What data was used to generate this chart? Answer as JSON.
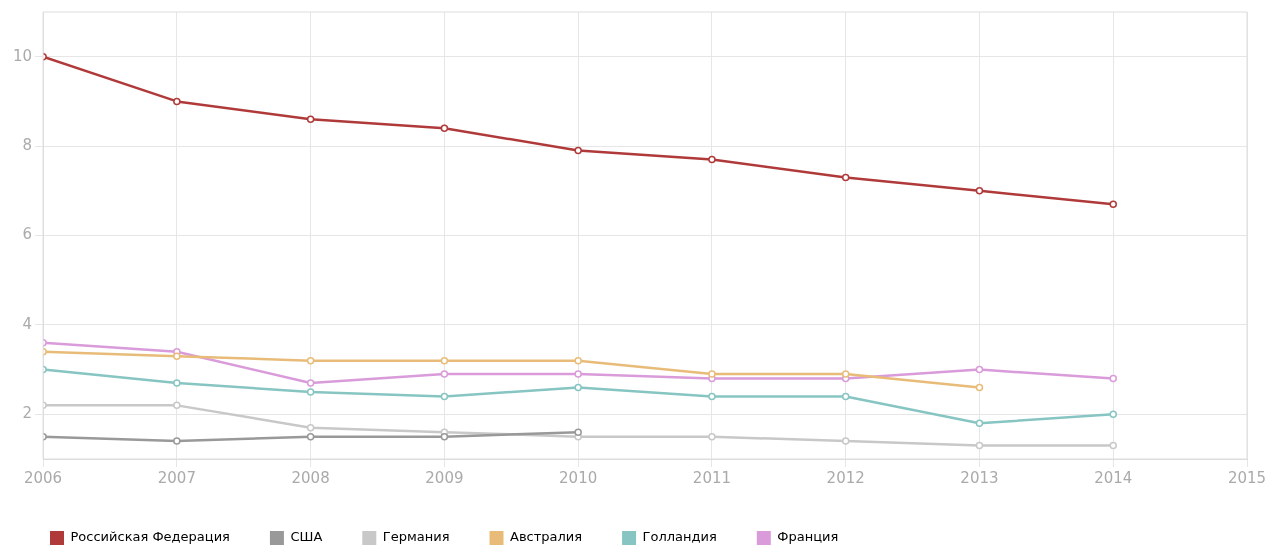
{
  "chart_data": {
    "type": "line",
    "x": [
      2006,
      2007,
      2008,
      2009,
      2010,
      2011,
      2012,
      2013,
      2014
    ],
    "xlim": [
      2006,
      2015
    ],
    "xticks": [
      2006,
      2007,
      2008,
      2009,
      2010,
      2011,
      2012,
      2013,
      2014,
      2015
    ],
    "ylim": [
      1,
      11
    ],
    "yticks": [
      2,
      4,
      6,
      8,
      10
    ],
    "grid": true,
    "legend": "bottom left",
    "marker": "circle",
    "line_style": "solid",
    "series": [
      {
        "name": "Российская Федерация",
        "color": "#b03a3a",
        "values": [
          10,
          9.0,
          8.6,
          8.4,
          7.9,
          7.7,
          7.3,
          7.0,
          6.7
        ]
      },
      {
        "name": "США",
        "color": "#999999",
        "values": [
          1.5,
          1.4,
          1.5,
          1.5,
          1.6,
          null,
          null,
          null,
          null
        ]
      },
      {
        "name": "Германия",
        "color": "#c8c8c8",
        "values": [
          2.2,
          2.2,
          1.7,
          1.6,
          1.5,
          1.5,
          1.4,
          1.3,
          1.3
        ]
      },
      {
        "name": "Австралия",
        "color": "#e8bc78",
        "values": [
          3.4,
          3.3,
          3.2,
          3.2,
          3.2,
          2.9,
          2.9,
          2.6,
          null
        ]
      },
      {
        "name": "Голландия",
        "color": "#86c5c2",
        "values": [
          3.0,
          2.7,
          2.5,
          2.4,
          2.6,
          2.4,
          2.4,
          1.8,
          2.0
        ]
      },
      {
        "name": "Франция",
        "color": "#d99bd9",
        "values": [
          3.6,
          3.4,
          2.7,
          2.9,
          2.9,
          2.8,
          2.8,
          3.0,
          2.8
        ]
      }
    ]
  }
}
